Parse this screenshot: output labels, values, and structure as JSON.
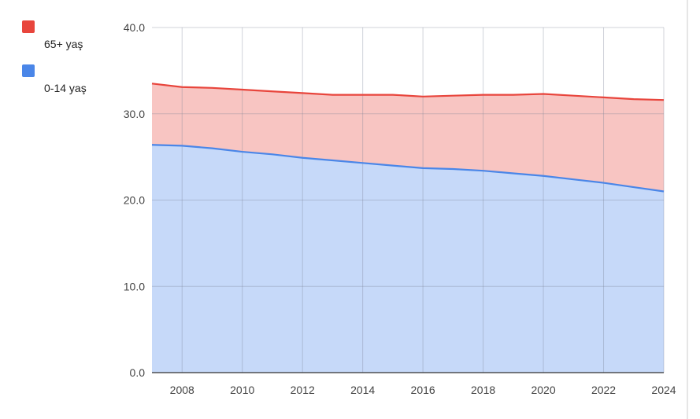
{
  "chart_data": {
    "type": "area",
    "stacked": true,
    "x": [
      2007,
      2008,
      2009,
      2010,
      2011,
      2012,
      2013,
      2014,
      2015,
      2016,
      2017,
      2018,
      2019,
      2020,
      2021,
      2022,
      2023,
      2024
    ],
    "series": [
      {
        "name": "0-14 yaş",
        "color": "#4a86e8",
        "values": [
          26.4,
          26.3,
          26.0,
          25.6,
          25.3,
          24.9,
          24.6,
          24.3,
          24.0,
          23.7,
          23.6,
          23.4,
          23.1,
          22.8,
          22.4,
          22.0,
          21.5,
          21.0
        ]
      },
      {
        "name": "65+ yaş",
        "color": "#e8453c",
        "values": [
          7.1,
          6.8,
          7.0,
          7.2,
          7.3,
          7.5,
          7.6,
          7.9,
          8.2,
          8.3,
          8.5,
          8.8,
          9.1,
          9.5,
          9.7,
          9.9,
          10.2,
          10.6
        ]
      }
    ],
    "y_ticks": [
      "0.0",
      "10.0",
      "20.0",
      "30.0",
      "40.0"
    ],
    "x_ticks": [
      "2008",
      "2010",
      "2012",
      "2014",
      "2016",
      "2018",
      "2020",
      "2022",
      "2024"
    ],
    "ylim": [
      0,
      40
    ],
    "xlim": [
      2007,
      2024
    ],
    "grid": true,
    "legend_position": "left"
  }
}
